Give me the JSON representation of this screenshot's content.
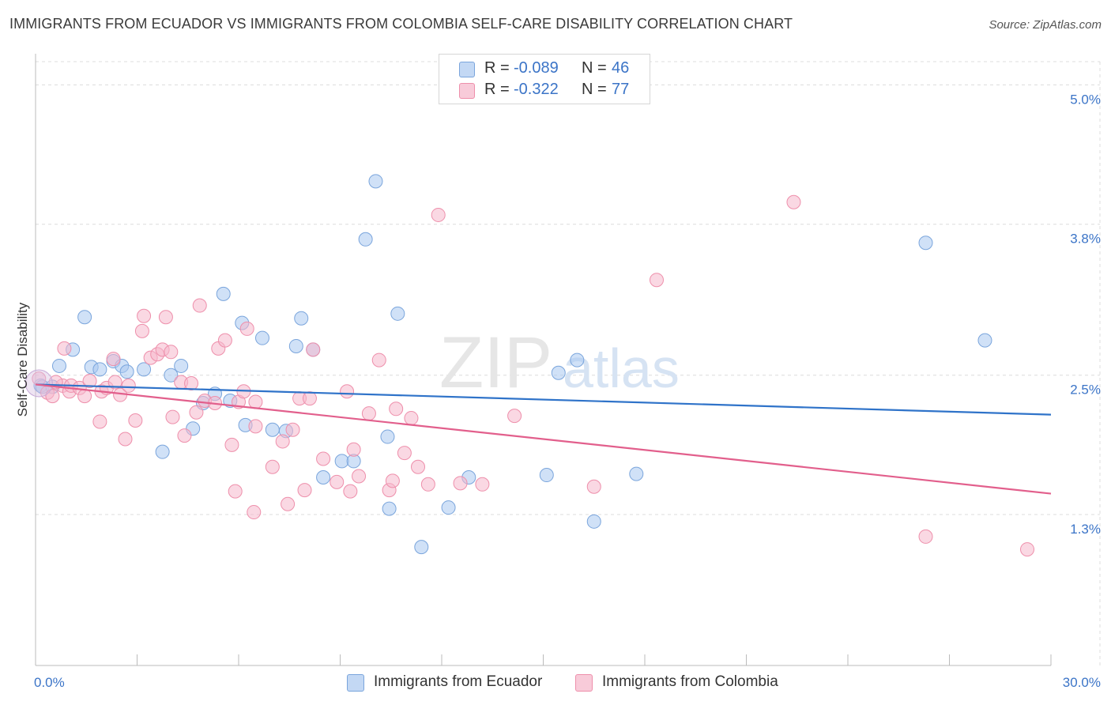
{
  "header": {
    "title": "IMMIGRANTS FROM ECUADOR VS IMMIGRANTS FROM COLOMBIA SELF-CARE DISABILITY CORRELATION CHART",
    "source": "Source: ZipAtlas.com"
  },
  "watermark": {
    "part1": "ZIP",
    "part2": "atlas"
  },
  "legend": {
    "rows": [
      {
        "r_label": "R =",
        "r_value": "-0.089",
        "n_label": "N =",
        "n_value": "46",
        "color": "#a9c8f0"
      },
      {
        "r_label": "R =",
        "r_value": "-0.322",
        "n_label": "N =",
        "n_value": "77",
        "color": "#f5b8cc"
      }
    ]
  },
  "chart_data": {
    "type": "scatter",
    "title": "IMMIGRANTS FROM ECUADOR VS IMMIGRANTS FROM COLOMBIA SELF-CARE DISABILITY CORRELATION CHART",
    "xlabel": "",
    "ylabel": "Self-Care Disability",
    "xlim": [
      0,
      30
    ],
    "ylim": [
      0,
      5.2
    ],
    "x_tick_labels": [
      "0.0%",
      "30.0%"
    ],
    "y_ticks": [
      1.3,
      2.5,
      3.8,
      5.0
    ],
    "y_tick_labels": [
      "1.3%",
      "2.5%",
      "3.8%",
      "5.0%"
    ],
    "grid": true,
    "legend_position": "bottom",
    "series": [
      {
        "name": "Immigrants from Ecuador",
        "color": "#a9c8f0",
        "stroke": "#7aa5dc",
        "line_color": "#2f73c9",
        "trend": {
          "x": [
            0,
            30
          ],
          "y": [
            2.42,
            2.16
          ]
        },
        "points": [
          [
            0.15,
            2.41
          ],
          [
            0.2,
            2.4
          ],
          [
            0.5,
            2.4
          ],
          [
            0.7,
            2.58
          ],
          [
            1.1,
            2.72
          ],
          [
            1.45,
            3.0
          ],
          [
            1.65,
            2.57
          ],
          [
            1.9,
            2.55
          ],
          [
            2.3,
            2.62
          ],
          [
            2.55,
            2.58
          ],
          [
            2.7,
            2.53
          ],
          [
            3.2,
            2.55
          ],
          [
            3.75,
            1.84
          ],
          [
            4.0,
            2.5
          ],
          [
            4.3,
            2.58
          ],
          [
            4.65,
            2.04
          ],
          [
            4.95,
            2.26
          ],
          [
            5.3,
            2.34
          ],
          [
            5.55,
            3.2
          ],
          [
            5.75,
            2.28
          ],
          [
            6.1,
            2.95
          ],
          [
            6.2,
            2.07
          ],
          [
            6.7,
            2.82
          ],
          [
            7.0,
            2.03
          ],
          [
            7.4,
            2.02
          ],
          [
            7.7,
            2.75
          ],
          [
            7.85,
            2.99
          ],
          [
            8.2,
            2.72
          ],
          [
            8.5,
            1.62
          ],
          [
            9.05,
            1.76
          ],
          [
            9.4,
            1.76
          ],
          [
            9.75,
            3.67
          ],
          [
            10.05,
            4.17
          ],
          [
            10.4,
            1.97
          ],
          [
            10.45,
            1.35
          ],
          [
            10.7,
            3.03
          ],
          [
            11.4,
            1.02
          ],
          [
            12.2,
            1.36
          ],
          [
            12.8,
            1.62
          ],
          [
            15.1,
            1.64
          ],
          [
            15.45,
            2.52
          ],
          [
            16.0,
            2.63
          ],
          [
            16.5,
            1.24
          ],
          [
            17.75,
            1.65
          ],
          [
            26.3,
            3.64
          ],
          [
            28.05,
            2.8
          ]
        ]
      },
      {
        "name": "Immigrants from Colombia",
        "color": "#f5b8cc",
        "stroke": "#ee8fab",
        "line_color": "#e25f8c",
        "trend": {
          "x": [
            0,
            30
          ],
          "y": [
            2.42,
            1.48
          ]
        },
        "points": [
          [
            0.1,
            2.47
          ],
          [
            0.35,
            2.35
          ],
          [
            0.5,
            2.32
          ],
          [
            0.8,
            2.41
          ],
          [
            0.85,
            2.73
          ],
          [
            1.0,
            2.36
          ],
          [
            1.05,
            2.41
          ],
          [
            1.3,
            2.39
          ],
          [
            1.45,
            2.32
          ],
          [
            1.6,
            2.45
          ],
          [
            1.9,
            2.1
          ],
          [
            1.95,
            2.36
          ],
          [
            2.1,
            2.39
          ],
          [
            2.3,
            2.64
          ],
          [
            2.35,
            2.44
          ],
          [
            2.5,
            2.33
          ],
          [
            2.65,
            1.95
          ],
          [
            2.75,
            2.41
          ],
          [
            2.95,
            2.11
          ],
          [
            3.15,
            2.88
          ],
          [
            3.2,
            3.01
          ],
          [
            3.4,
            2.65
          ],
          [
            3.6,
            2.68
          ],
          [
            3.75,
            2.72
          ],
          [
            3.85,
            3.0
          ],
          [
            4.0,
            2.7
          ],
          [
            4.05,
            2.14
          ],
          [
            4.3,
            2.44
          ],
          [
            4.4,
            1.98
          ],
          [
            4.6,
            2.43
          ],
          [
            4.75,
            2.18
          ],
          [
            4.85,
            3.1
          ],
          [
            5.0,
            2.28
          ],
          [
            5.3,
            2.26
          ],
          [
            5.4,
            2.73
          ],
          [
            5.6,
            2.8
          ],
          [
            5.8,
            1.9
          ],
          [
            5.9,
            1.5
          ],
          [
            6.0,
            2.27
          ],
          [
            6.15,
            2.36
          ],
          [
            6.25,
            2.9
          ],
          [
            6.45,
            1.32
          ],
          [
            6.5,
            2.06
          ],
          [
            6.5,
            2.27
          ],
          [
            7.0,
            1.71
          ],
          [
            7.3,
            1.93
          ],
          [
            7.45,
            1.39
          ],
          [
            7.6,
            2.03
          ],
          [
            7.8,
            2.3
          ],
          [
            7.95,
            1.51
          ],
          [
            8.1,
            2.3
          ],
          [
            8.2,
            2.72
          ],
          [
            8.5,
            1.78
          ],
          [
            8.9,
            1.58
          ],
          [
            9.2,
            2.36
          ],
          [
            9.4,
            1.86
          ],
          [
            9.55,
            1.63
          ],
          [
            9.85,
            2.17
          ],
          [
            10.15,
            2.63
          ],
          [
            10.45,
            1.51
          ],
          [
            10.55,
            1.59
          ],
          [
            10.65,
            2.21
          ],
          [
            10.9,
            1.83
          ],
          [
            11.1,
            2.13
          ],
          [
            11.3,
            1.71
          ],
          [
            11.6,
            1.56
          ],
          [
            11.9,
            3.88
          ],
          [
            12.55,
            1.57
          ],
          [
            13.2,
            1.56
          ],
          [
            14.15,
            2.15
          ],
          [
            16.5,
            1.54
          ],
          [
            18.35,
            3.32
          ],
          [
            22.4,
            3.99
          ],
          [
            26.3,
            1.11
          ],
          [
            29.3,
            1.0
          ],
          [
            9.3,
            1.5
          ],
          [
            0.6,
            2.44
          ]
        ]
      }
    ]
  }
}
